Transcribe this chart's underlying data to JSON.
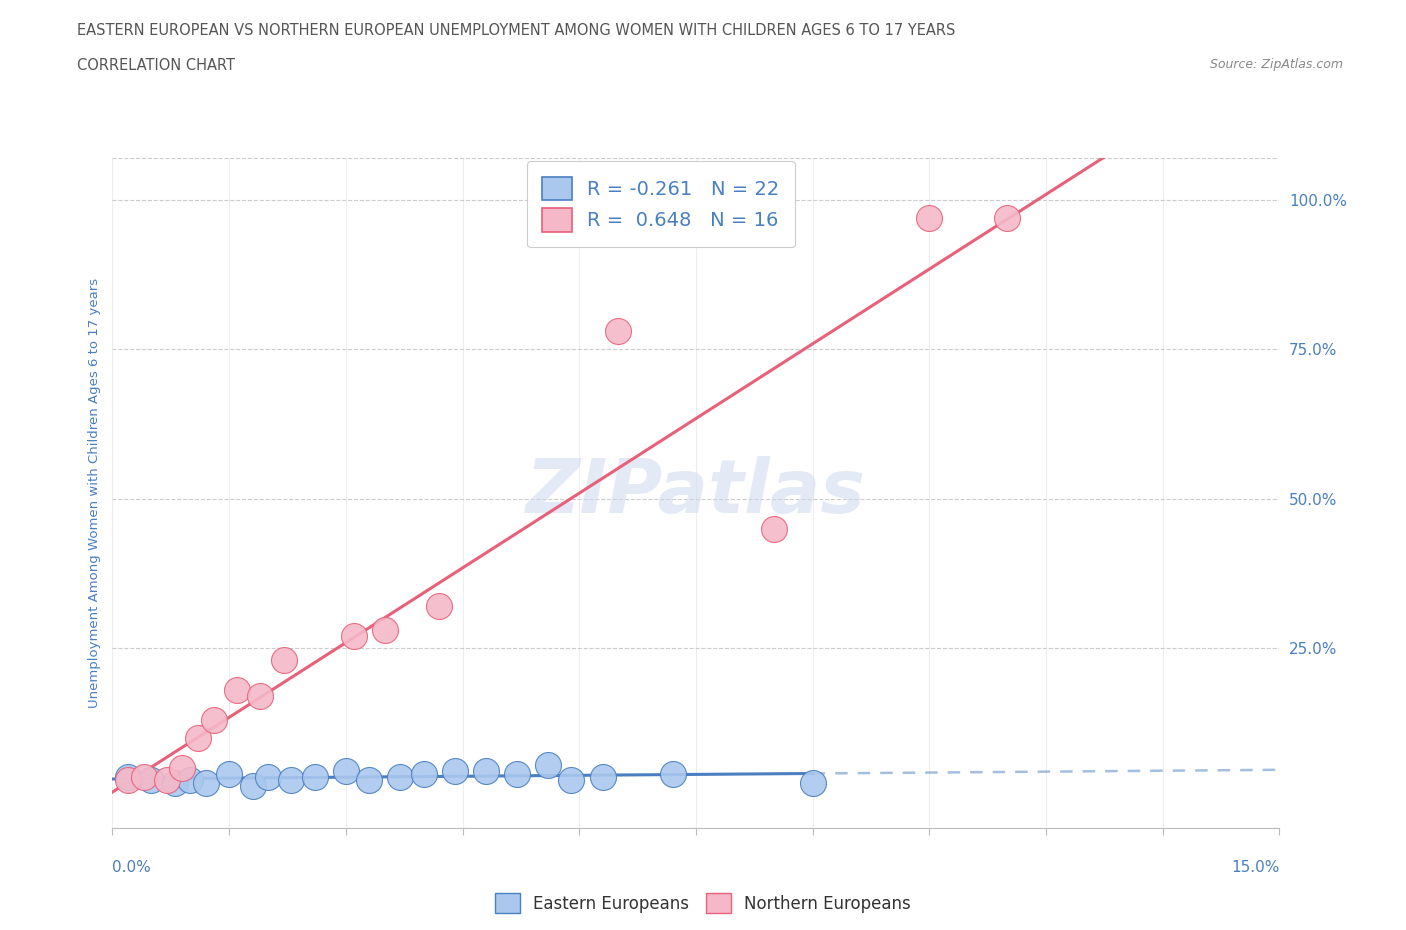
{
  "title_line1": "EASTERN EUROPEAN VS NORTHERN EUROPEAN UNEMPLOYMENT AMONG WOMEN WITH CHILDREN AGES 6 TO 17 YEARS",
  "title_line2": "CORRELATION CHART",
  "source": "Source: ZipAtlas.com",
  "ylabel": "Unemployment Among Women with Children Ages 6 to 17 years",
  "watermark": "ZIPatlas",
  "blue_R": -0.261,
  "blue_N": 22,
  "pink_R": 0.648,
  "pink_N": 16,
  "blue_color": "#aac8ee",
  "pink_color": "#f5b8c8",
  "blue_line_color": "#4a7fc1",
  "pink_line_color": "#e8607a",
  "blue_scatter": [
    [
      0.2,
      3.5
    ],
    [
      0.5,
      3.0
    ],
    [
      0.8,
      2.5
    ],
    [
      1.0,
      3.0
    ],
    [
      1.2,
      2.5
    ],
    [
      1.5,
      4.0
    ],
    [
      1.8,
      2.0
    ],
    [
      2.0,
      3.5
    ],
    [
      2.3,
      3.0
    ],
    [
      2.6,
      3.5
    ],
    [
      3.0,
      4.5
    ],
    [
      3.3,
      3.0
    ],
    [
      3.7,
      3.5
    ],
    [
      4.0,
      4.0
    ],
    [
      4.4,
      4.5
    ],
    [
      4.8,
      4.5
    ],
    [
      5.2,
      4.0
    ],
    [
      5.6,
      5.5
    ],
    [
      5.9,
      3.0
    ],
    [
      6.3,
      3.5
    ],
    [
      7.2,
      4.0
    ],
    [
      9.0,
      2.5
    ]
  ],
  "pink_scatter": [
    [
      0.2,
      3.0
    ],
    [
      0.4,
      3.5
    ],
    [
      0.7,
      3.0
    ],
    [
      0.9,
      5.0
    ],
    [
      1.1,
      10.0
    ],
    [
      1.3,
      13.0
    ],
    [
      1.6,
      18.0
    ],
    [
      1.9,
      17.0
    ],
    [
      2.2,
      23.0
    ],
    [
      3.1,
      27.0
    ],
    [
      3.5,
      28.0
    ],
    [
      4.2,
      32.0
    ],
    [
      6.5,
      78.0
    ],
    [
      8.5,
      45.0
    ],
    [
      10.5,
      97.0
    ],
    [
      11.5,
      97.0
    ]
  ],
  "xlim": [
    0.0,
    15.0
  ],
  "ylim": [
    -5.0,
    107.0
  ],
  "right_yticks": [
    25.0,
    50.0,
    75.0,
    100.0
  ],
  "grid_color": "#cccccc",
  "background_color": "#ffffff",
  "title_color": "#555555",
  "legend_text_color": "#4a7fc1",
  "axis_label_color": "#4a7fc1",
  "blue_dashed_start_x": 9.5
}
